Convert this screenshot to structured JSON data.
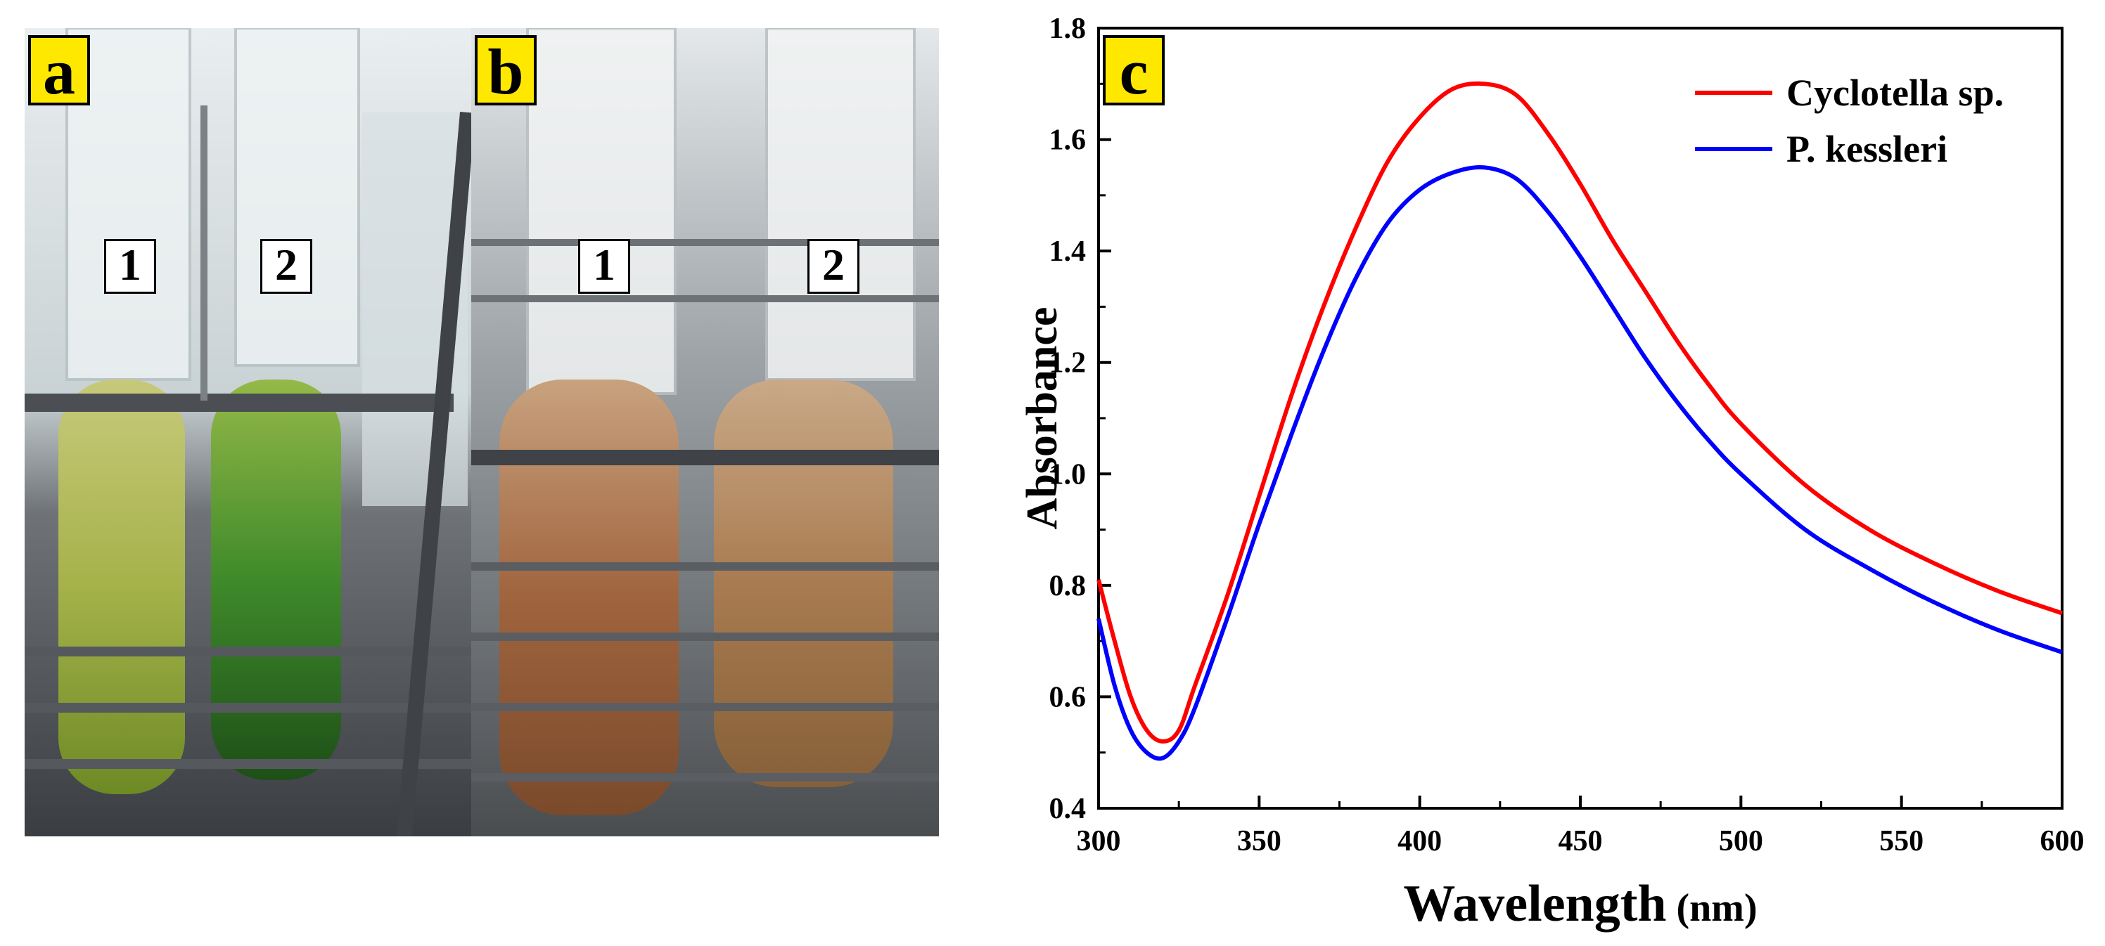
{
  "panels": {
    "a": {
      "label": "a",
      "tubes": [
        "1",
        "2"
      ]
    },
    "b": {
      "label": "b",
      "tubes": [
        "1",
        "2"
      ]
    },
    "c": {
      "label": "c"
    }
  },
  "colors": {
    "series_1": "#ff0000",
    "series_2": "#0000ff",
    "label_bg": "#ffe800"
  },
  "chart_data": {
    "type": "line",
    "xlabel": "Wavelength",
    "xlabel_unit": "(nm)",
    "ylabel": "Absorbance",
    "xlim": [
      300,
      600
    ],
    "ylim": [
      0.4,
      1.8
    ],
    "xticks": [
      300,
      350,
      400,
      450,
      500,
      550,
      600
    ],
    "yticks": [
      0.4,
      0.6,
      0.8,
      1.0,
      1.2,
      1.4,
      1.6,
      1.8
    ],
    "xtick_labels": [
      "300",
      "350",
      "400",
      "450",
      "500",
      "550",
      "600"
    ],
    "ytick_labels": [
      "0.4",
      "0.6",
      "0.8",
      "1.0",
      "1.2",
      "1.4",
      "1.6",
      "1.8"
    ],
    "legend_position": "top-right",
    "grid": false,
    "series": [
      {
        "name": "Cyclotella sp.",
        "color": "#ff0000",
        "x": [
          300,
          305,
          310,
          315,
          320,
          325,
          330,
          340,
          350,
          360,
          370,
          380,
          390,
          400,
          410,
          420,
          430,
          440,
          450,
          460,
          470,
          480,
          490,
          500,
          520,
          540,
          560,
          580,
          600
        ],
        "y": [
          0.81,
          0.7,
          0.6,
          0.54,
          0.52,
          0.54,
          0.62,
          0.78,
          0.96,
          1.14,
          1.3,
          1.44,
          1.56,
          1.64,
          1.69,
          1.7,
          1.68,
          1.61,
          1.52,
          1.42,
          1.33,
          1.24,
          1.16,
          1.09,
          0.98,
          0.9,
          0.84,
          0.79,
          0.75
        ]
      },
      {
        "name": "P. kessleri",
        "color": "#0000ff",
        "x": [
          300,
          305,
          310,
          315,
          320,
          325,
          330,
          340,
          350,
          360,
          370,
          380,
          390,
          400,
          410,
          420,
          430,
          440,
          450,
          460,
          470,
          480,
          490,
          500,
          520,
          540,
          560,
          580,
          600
        ],
        "y": [
          0.74,
          0.62,
          0.54,
          0.5,
          0.49,
          0.52,
          0.58,
          0.74,
          0.91,
          1.07,
          1.22,
          1.35,
          1.45,
          1.51,
          1.54,
          1.55,
          1.53,
          1.47,
          1.39,
          1.3,
          1.21,
          1.13,
          1.06,
          1.0,
          0.9,
          0.83,
          0.77,
          0.72,
          0.68
        ]
      }
    ]
  }
}
